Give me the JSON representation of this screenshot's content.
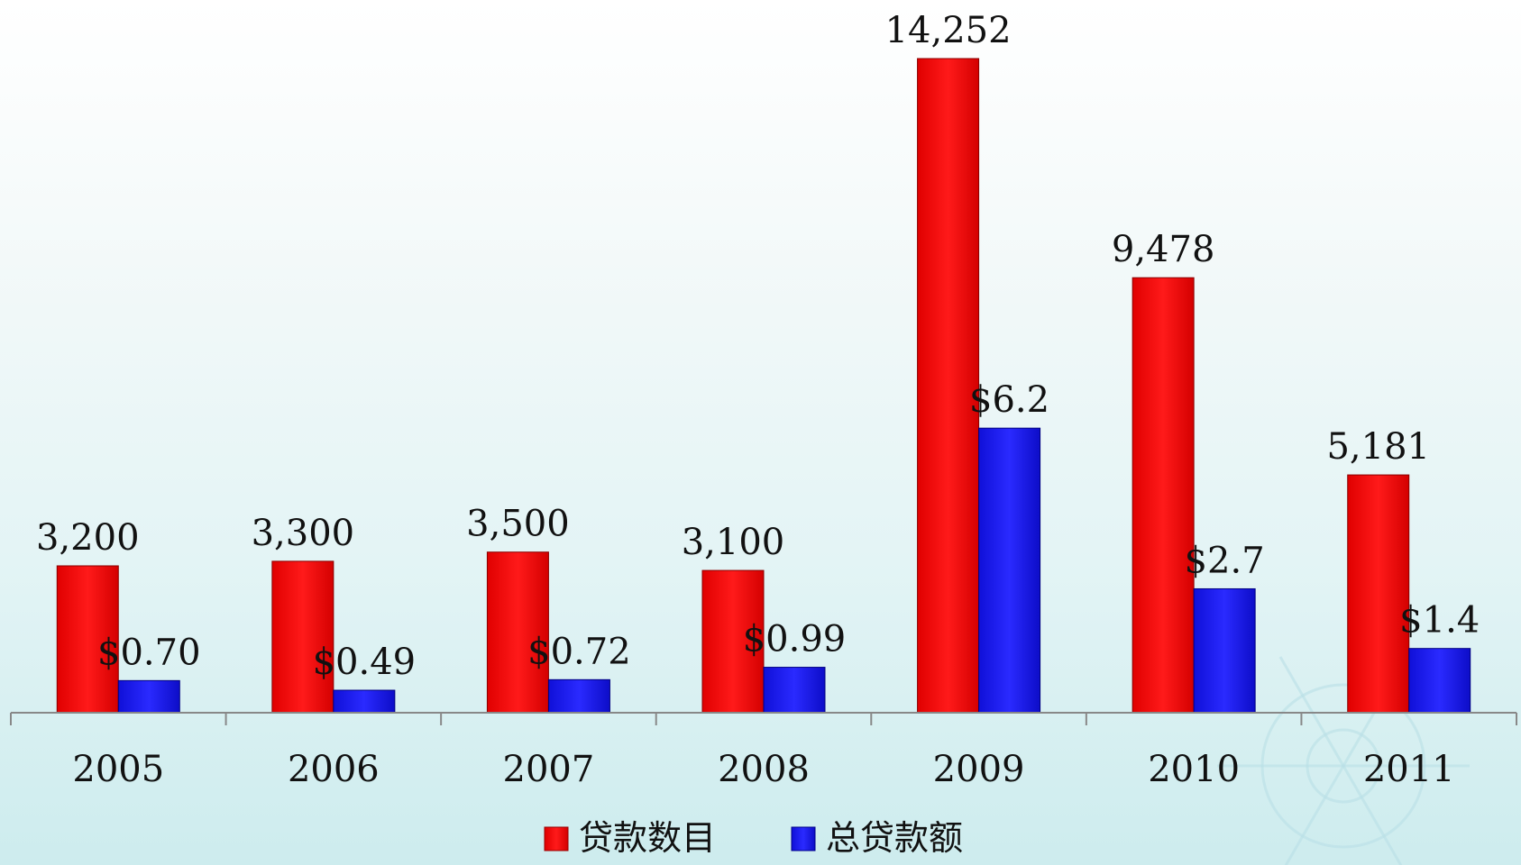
{
  "chart_data": {
    "type": "bar",
    "title": "",
    "xlabel": "",
    "ylabel": "",
    "categories": [
      "2005",
      "2006",
      "2007",
      "2008",
      "2009",
      "2010",
      "2011"
    ],
    "series": [
      {
        "name": "贷款数目",
        "color": "#ff0000",
        "values": [
          3200,
          3300,
          3500,
          3100,
          14252,
          9478,
          5181
        ],
        "labels": [
          "3,200",
          "3,300",
          "3,500",
          "3,100",
          "14,252",
          "9,478",
          "5,181"
        ]
      },
      {
        "name": "总贷款额",
        "color": "#1a1aff",
        "values": [
          0.7,
          0.49,
          0.72,
          0.99,
          6.2,
          2.7,
          1.4
        ],
        "labels": [
          "$0.70",
          "$0.49",
          "$0.72",
          "$0.99",
          "$6.2",
          "$2.7",
          "$1.4"
        ]
      }
    ],
    "ylim_series1": [
      0,
      14252
    ],
    "ylim_series2": [
      0,
      14.252
    ],
    "grid": false,
    "legend_position": "bottom-center"
  }
}
